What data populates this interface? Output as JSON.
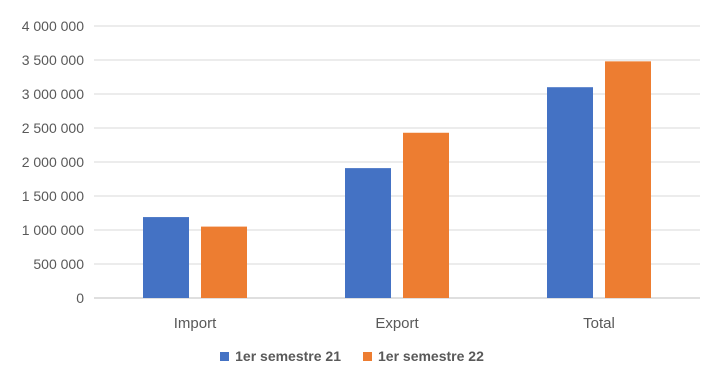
{
  "chart_data": {
    "type": "bar",
    "categories": [
      "Import",
      "Export",
      "Total"
    ],
    "series": [
      {
        "name": "1er semestre 21",
        "color": "#4472C4",
        "values": [
          1190000,
          1910000,
          3100000
        ]
      },
      {
        "name": "1er semestre 22",
        "color": "#ED7D31",
        "values": [
          1050000,
          2430000,
          3480000
        ]
      }
    ],
    "yticks": [
      "0",
      "500 000",
      "1 000 000",
      "1 500 000",
      "2 000 000",
      "2 500 000",
      "3 000 000",
      "3 500 000",
      "4 000 000"
    ],
    "ylim": [
      0,
      4000000
    ],
    "grid": true,
    "legend_position": "bottom",
    "title": "",
    "xlabel": "",
    "ylabel": ""
  }
}
